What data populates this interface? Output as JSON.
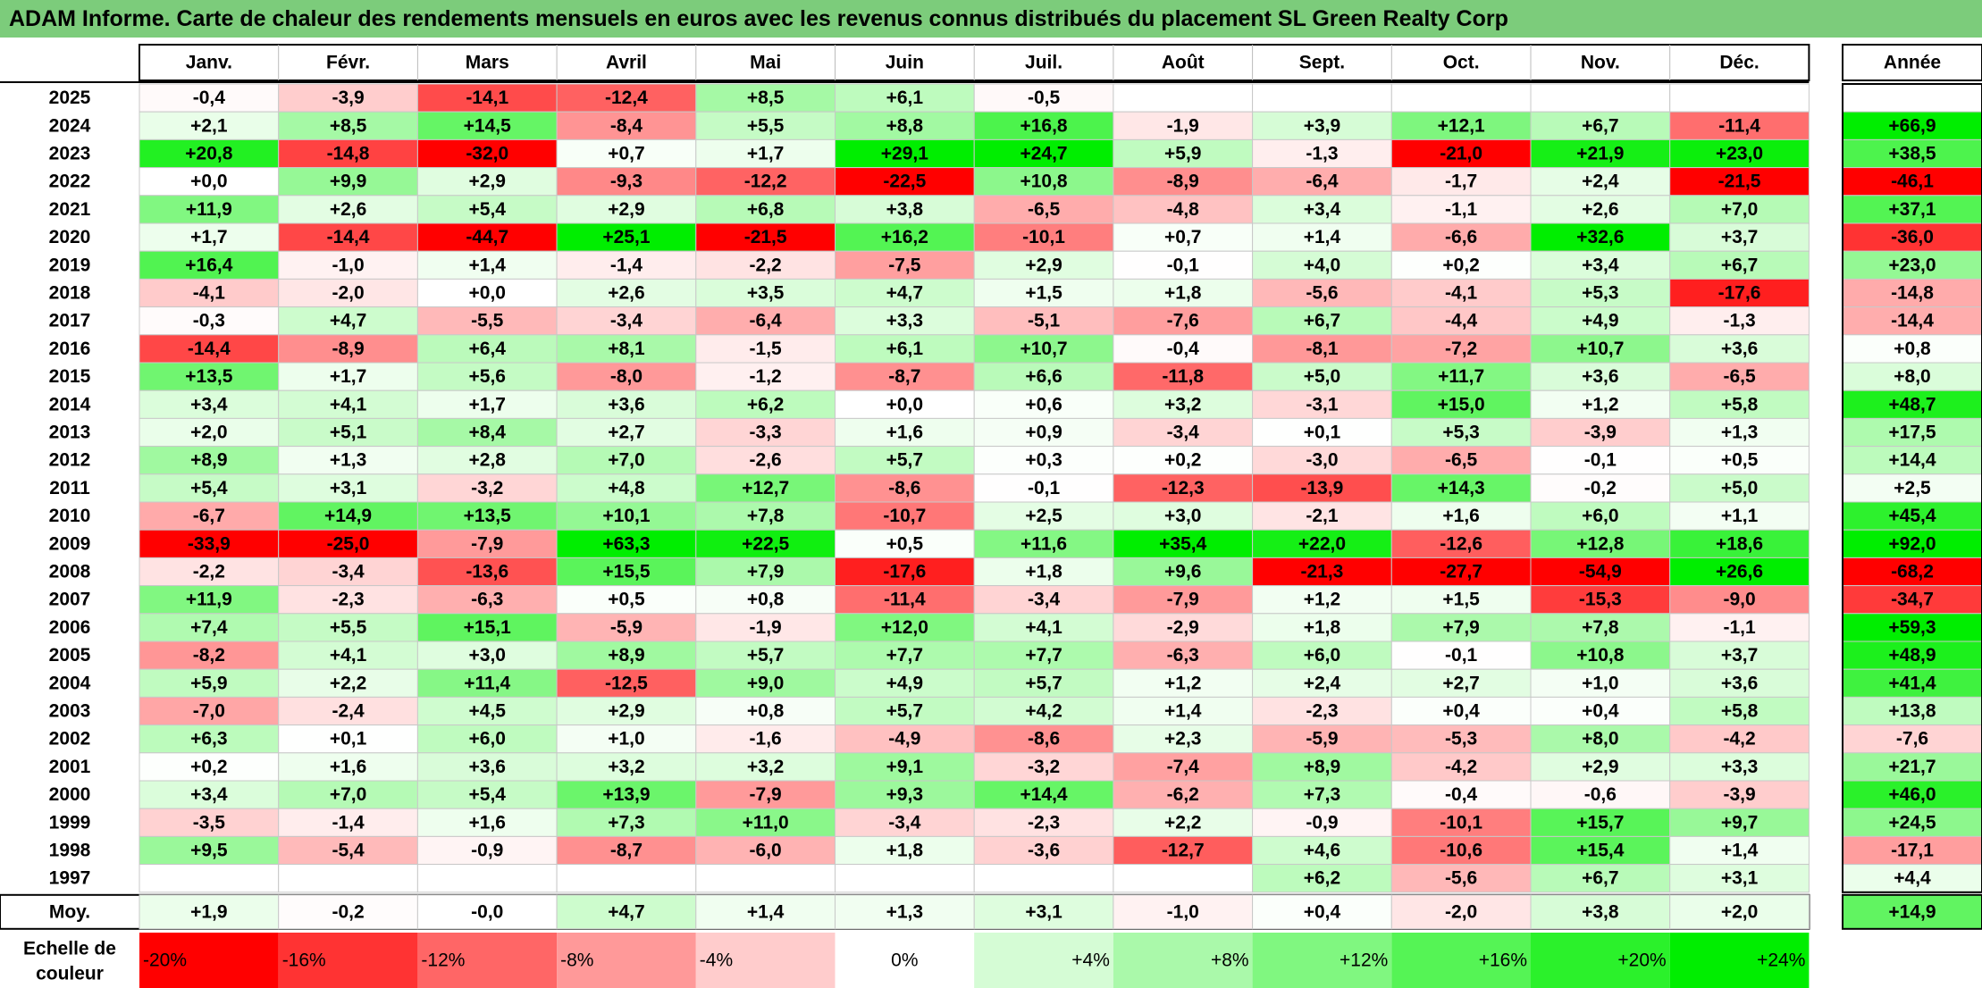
{
  "title": "ADAM Informe. Carte de chaleur des rendements mensuels en euros avec les revenus connus distribués du placement SL Green Realty Corp",
  "chart_data": {
    "type": "heatmap",
    "months": [
      "Janv.",
      "Févr.",
      "Mars",
      "Avril",
      "Mai",
      "Juin",
      "Juil.",
      "Août",
      "Sept.",
      "Oct.",
      "Nov.",
      "Déc."
    ],
    "year_header": "Année",
    "years": [
      "2025",
      "2024",
      "2023",
      "2022",
      "2021",
      "2020",
      "2019",
      "2018",
      "2017",
      "2016",
      "2015",
      "2014",
      "2013",
      "2012",
      "2011",
      "2010",
      "2009",
      "2008",
      "2007",
      "2006",
      "2005",
      "2004",
      "2003",
      "2002",
      "2001",
      "2000",
      "1999",
      "1998",
      "1997"
    ],
    "values": [
      [
        "-0,4",
        "-3,9",
        "-14,1",
        "-12,4",
        "+8,5",
        "+6,1",
        "-0,5",
        "",
        "",
        "",
        "",
        ""
      ],
      [
        "+2,1",
        "+8,5",
        "+14,5",
        "-8,4",
        "+5,5",
        "+8,8",
        "+16,8",
        "-1,9",
        "+3,9",
        "+12,1",
        "+6,7",
        "-11,4"
      ],
      [
        "+20,8",
        "-14,8",
        "-32,0",
        "+0,7",
        "+1,7",
        "+29,1",
        "+24,7",
        "+5,9",
        "-1,3",
        "-21,0",
        "+21,9",
        "+23,0"
      ],
      [
        "+0,0",
        "+9,9",
        "+2,9",
        "-9,3",
        "-12,2",
        "-22,5",
        "+10,8",
        "-8,9",
        "-6,4",
        "-1,7",
        "+2,4",
        "-21,5"
      ],
      [
        "+11,9",
        "+2,6",
        "+5,4",
        "+2,9",
        "+6,8",
        "+3,8",
        "-6,5",
        "-4,8",
        "+3,4",
        "-1,1",
        "+2,6",
        "+7,0"
      ],
      [
        "+1,7",
        "-14,4",
        "-44,7",
        "+25,1",
        "-21,5",
        "+16,2",
        "-10,1",
        "+0,7",
        "+1,4",
        "-6,6",
        "+32,6",
        "+3,7"
      ],
      [
        "+16,4",
        "-1,0",
        "+1,4",
        "-1,4",
        "-2,2",
        "-7,5",
        "+2,9",
        "-0,1",
        "+4,0",
        "+0,2",
        "+3,4",
        "+6,7"
      ],
      [
        "-4,1",
        "-2,0",
        "+0,0",
        "+2,6",
        "+3,5",
        "+4,7",
        "+1,5",
        "+1,8",
        "-5,6",
        "-4,1",
        "+5,3",
        "-17,6"
      ],
      [
        "-0,3",
        "+4,7",
        "-5,5",
        "-3,4",
        "-6,4",
        "+3,3",
        "-5,1",
        "-7,6",
        "+6,7",
        "-4,4",
        "+4,9",
        "-1,3"
      ],
      [
        "-14,4",
        "-8,9",
        "+6,4",
        "+8,1",
        "-1,5",
        "+6,1",
        "+10,7",
        "-0,4",
        "-8,1",
        "-7,2",
        "+10,7",
        "+3,6"
      ],
      [
        "+13,5",
        "+1,7",
        "+5,6",
        "-8,0",
        "-1,2",
        "-8,7",
        "+6,6",
        "-11,8",
        "+5,0",
        "+11,7",
        "+3,6",
        "-6,5"
      ],
      [
        "+3,4",
        "+4,1",
        "+1,7",
        "+3,6",
        "+6,2",
        "+0,0",
        "+0,6",
        "+3,2",
        "-3,1",
        "+15,0",
        "+1,2",
        "+5,8"
      ],
      [
        "+2,0",
        "+5,1",
        "+8,4",
        "+2,7",
        "-3,3",
        "+1,6",
        "+0,9",
        "-3,4",
        "+0,1",
        "+5,3",
        "-3,9",
        "+1,3"
      ],
      [
        "+8,9",
        "+1,3",
        "+2,8",
        "+7,0",
        "-2,6",
        "+5,7",
        "+0,3",
        "+0,2",
        "-3,0",
        "-6,5",
        "-0,1",
        "+0,5"
      ],
      [
        "+5,4",
        "+3,1",
        "-3,2",
        "+4,8",
        "+12,7",
        "-8,6",
        "-0,1",
        "-12,3",
        "-13,9",
        "+14,3",
        "-0,2",
        "+5,0"
      ],
      [
        "-6,7",
        "+14,9",
        "+13,5",
        "+10,1",
        "+7,8",
        "-10,7",
        "+2,5",
        "+3,0",
        "-2,1",
        "+1,6",
        "+6,0",
        "+1,1"
      ],
      [
        "-33,9",
        "-25,0",
        "-7,9",
        "+63,3",
        "+22,5",
        "+0,5",
        "+11,6",
        "+35,4",
        "+22,0",
        "-12,6",
        "+12,8",
        "+18,6"
      ],
      [
        "-2,2",
        "-3,4",
        "-13,6",
        "+15,5",
        "+7,9",
        "-17,6",
        "+1,8",
        "+9,6",
        "-21,3",
        "-27,7",
        "-54,9",
        "+26,6"
      ],
      [
        "+11,9",
        "-2,3",
        "-6,3",
        "+0,5",
        "+0,8",
        "-11,4",
        "-3,4",
        "-7,9",
        "+1,2",
        "+1,5",
        "-15,3",
        "-9,0"
      ],
      [
        "+7,4",
        "+5,5",
        "+15,1",
        "-5,9",
        "-1,9",
        "+12,0",
        "+4,1",
        "-2,9",
        "+1,8",
        "+7,9",
        "+7,8",
        "-1,1"
      ],
      [
        "-8,2",
        "+4,1",
        "+3,0",
        "+8,9",
        "+5,7",
        "+7,7",
        "+7,7",
        "-6,3",
        "+6,0",
        "-0,1",
        "+10,8",
        "+3,7"
      ],
      [
        "+5,9",
        "+2,2",
        "+11,4",
        "-12,5",
        "+9,0",
        "+4,9",
        "+5,7",
        "+1,2",
        "+2,4",
        "+2,7",
        "+1,0",
        "+3,6"
      ],
      [
        "-7,0",
        "-2,4",
        "+4,5",
        "+2,9",
        "+0,8",
        "+5,7",
        "+4,2",
        "+1,4",
        "-2,3",
        "+0,4",
        "+0,4",
        "+5,8"
      ],
      [
        "+6,3",
        "+0,1",
        "+6,0",
        "+1,0",
        "-1,6",
        "-4,9",
        "-8,6",
        "+2,3",
        "-5,9",
        "-5,3",
        "+8,0",
        "-4,2"
      ],
      [
        "+0,2",
        "+1,6",
        "+3,6",
        "+3,2",
        "+3,2",
        "+9,1",
        "-3,2",
        "-7,4",
        "+8,9",
        "-4,2",
        "+2,9",
        "+3,3"
      ],
      [
        "+3,4",
        "+7,0",
        "+5,4",
        "+13,9",
        "-7,9",
        "+9,3",
        "+14,4",
        "-6,2",
        "+7,3",
        "-0,4",
        "-0,6",
        "-3,9"
      ],
      [
        "-3,5",
        "-1,4",
        "+1,6",
        "+7,3",
        "+11,0",
        "-3,4",
        "-2,3",
        "+2,2",
        "-0,9",
        "-10,1",
        "+15,7",
        "+9,7"
      ],
      [
        "+9,5",
        "-5,4",
        "-0,9",
        "-8,7",
        "-6,0",
        "+1,8",
        "-3,6",
        "-12,7",
        "+4,6",
        "-10,6",
        "+15,4",
        "+1,4"
      ],
      [
        "",
        "",
        "",
        "",
        "",
        "",
        "",
        "",
        "+6,2",
        "-5,6",
        "+6,7",
        "+3,1"
      ]
    ],
    "annual": [
      "",
      "+66,9",
      "+38,5",
      "-46,1",
      "+37,1",
      "-36,0",
      "+23,0",
      "-14,8",
      "-14,4",
      "+0,8",
      "+8,0",
      "+48,7",
      "+17,5",
      "+14,4",
      "+2,5",
      "+45,4",
      "+92,0",
      "-68,2",
      "-34,7",
      "+59,3",
      "+48,9",
      "+41,4",
      "+13,8",
      "-7,6",
      "+21,7",
      "+46,0",
      "+24,5",
      "-17,1",
      "+4,4"
    ],
    "avg_label": "Moy.",
    "avg_values": [
      "+1,9",
      "-0,2",
      "-0,0",
      "+4,7",
      "+1,4",
      "+1,3",
      "+3,1",
      "-1,0",
      "+0,4",
      "-2,0",
      "+3,8",
      "+2,0"
    ],
    "avg_annual": "+14,9",
    "scale_label": [
      "Echelle de",
      "couleur"
    ],
    "scale": [
      {
        "label": "-20%",
        "value": -20
      },
      {
        "label": "-16%",
        "value": -16
      },
      {
        "label": "-12%",
        "value": -12
      },
      {
        "label": "-8%",
        "value": -8
      },
      {
        "label": "-4%",
        "value": -4
      },
      {
        "label": "0%",
        "value": 0
      },
      {
        "label": "+4%",
        "value": 4
      },
      {
        "label": "+8%",
        "value": 8
      },
      {
        "label": "+12%",
        "value": 12
      },
      {
        "label": "+16%",
        "value": 16
      },
      {
        "label": "+20%",
        "value": 20
      },
      {
        "label": "+24%",
        "value": 24
      }
    ],
    "colors": {
      "negative": "#ff0000",
      "neutral": "#ffffff",
      "positive": "#00ee00",
      "title_bg": "#7ccc7b"
    }
  }
}
